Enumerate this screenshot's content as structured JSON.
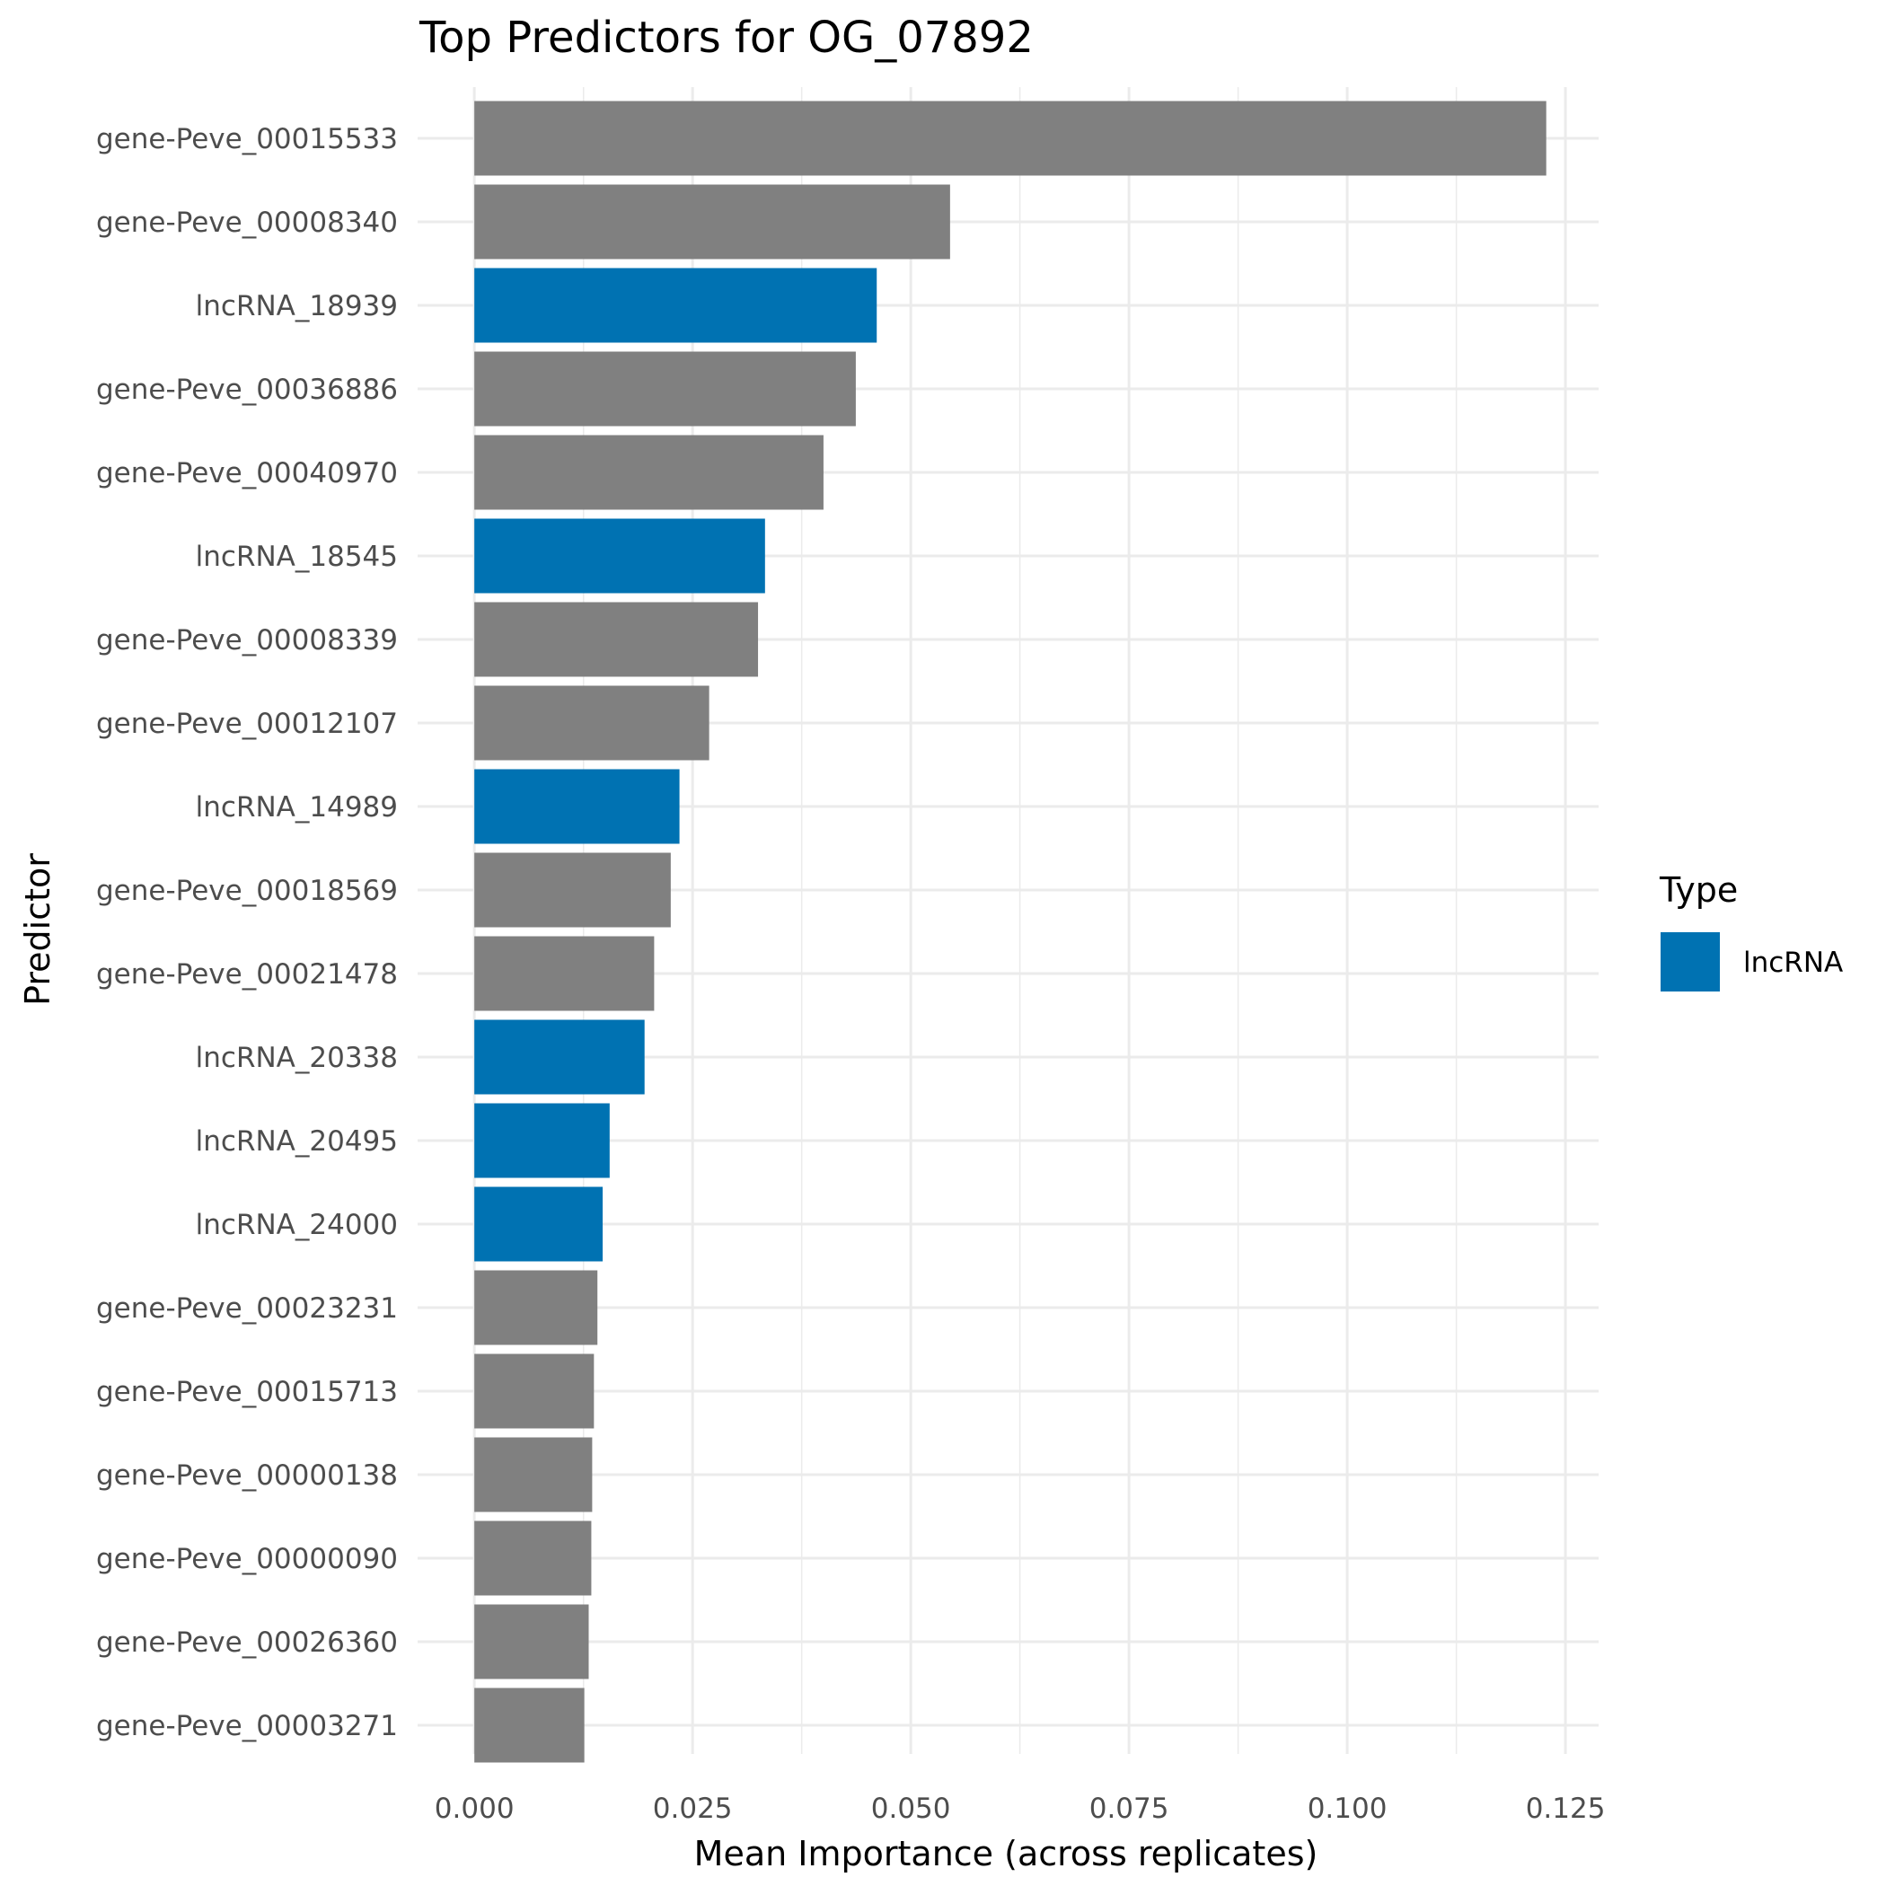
{
  "chart_data": {
    "type": "bar",
    "orientation": "horizontal",
    "title": "Top Predictors for OG_07892",
    "xlabel": "Mean Importance (across replicates)",
    "ylabel": "Predictor",
    "xlim": [
      -0.0065,
      0.1288
    ],
    "xticks": [
      0.0,
      0.025,
      0.05,
      0.075,
      0.1,
      0.125
    ],
    "xtick_labels": [
      "0.000",
      "0.025",
      "0.050",
      "0.075",
      "0.100",
      "0.125"
    ],
    "grid": true,
    "legend": {
      "title": "Type",
      "placement": "right",
      "entries": [
        {
          "label": "lncRNA",
          "color": "#0072B2"
        }
      ]
    },
    "colors": {
      "gene": "#808080",
      "lncRNA": "#0072B2"
    },
    "categories": [
      "gene-Peve_00015533",
      "gene-Peve_00008340",
      "lncRNA_18939",
      "gene-Peve_00036886",
      "gene-Peve_00040970",
      "lncRNA_18545",
      "gene-Peve_00008339",
      "gene-Peve_00012107",
      "lncRNA_14989",
      "gene-Peve_00018569",
      "gene-Peve_00021478",
      "lncRNA_20338",
      "lncRNA_20495",
      "lncRNA_24000",
      "gene-Peve_00023231",
      "gene-Peve_00015713",
      "gene-Peve_00000138",
      "gene-Peve_00000090",
      "gene-Peve_00026360",
      "gene-Peve_00003271"
    ],
    "values": [
      0.1228,
      0.0545,
      0.0461,
      0.0437,
      0.04,
      0.0333,
      0.0325,
      0.0269,
      0.0235,
      0.0225,
      0.0206,
      0.0195,
      0.0155,
      0.0147,
      0.0141,
      0.0137,
      0.0135,
      0.0134,
      0.0131,
      0.0126
    ],
    "types": [
      "gene",
      "gene",
      "lncRNA",
      "gene",
      "gene",
      "lncRNA",
      "gene",
      "gene",
      "lncRNA",
      "gene",
      "gene",
      "lncRNA",
      "lncRNA",
      "lncRNA",
      "gene",
      "gene",
      "gene",
      "gene",
      "gene",
      "gene"
    ]
  }
}
